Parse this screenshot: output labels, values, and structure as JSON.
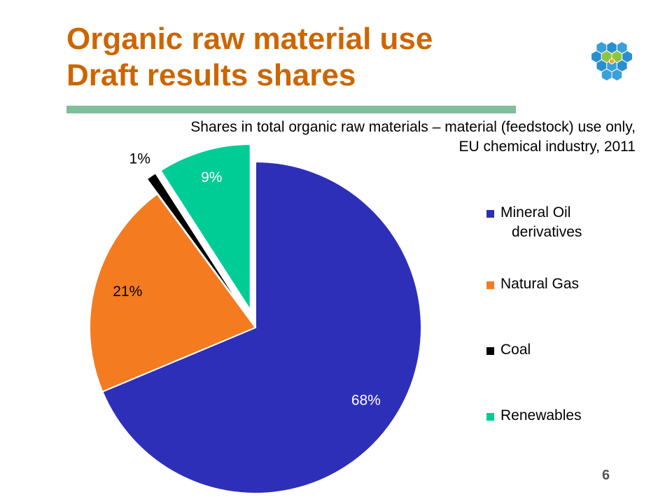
{
  "slide": {
    "title_line1": "Organic raw material use",
    "title_line2": "Draft results shares",
    "subtitle_line1": "Shares in total organic raw materials – material (feedstock) use only,",
    "subtitle_line2": "EU chemical industry, 2011",
    "page_number": "6"
  },
  "chart_data": {
    "type": "pie",
    "title": "Shares in total organic raw materials – material (feedstock) use only, EU chemical industry, 2011",
    "legend_position": "right",
    "categories": [
      "Mineral Oil derivatives",
      "Natural Gas",
      "Coal",
      "Renewables"
    ],
    "values": [
      68,
      21,
      1,
      9
    ],
    "labels": [
      "68%",
      "21%",
      "1%",
      "9%"
    ],
    "colors": [
      "#2e2fb8",
      "#f47b20",
      "#000000",
      "#00cc96"
    ],
    "exploded": [
      false,
      false,
      true,
      true
    ]
  },
  "legend": {
    "items": [
      {
        "line1": "Mineral Oil",
        "line2": "derivatives",
        "color": "#2e2fb8"
      },
      {
        "line1": "Natural Gas",
        "line2": "",
        "color": "#f47b20"
      },
      {
        "line1": "Coal",
        "line2": "",
        "color": "#000000"
      },
      {
        "line1": "Renewables",
        "line2": "",
        "color": "#00cc96"
      }
    ]
  }
}
